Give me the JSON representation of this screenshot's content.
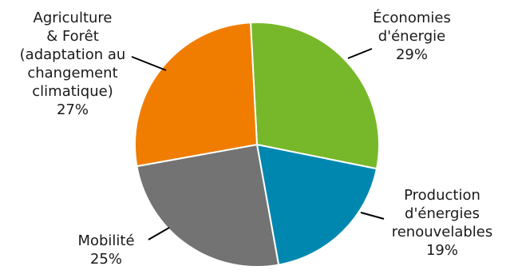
{
  "chart_data": {
    "type": "pie",
    "title": "",
    "start_angle_deg": 0,
    "direction": "clockwise",
    "slices": [
      {
        "label_lines": [
          "Économies",
          "d'énergie"
        ],
        "value": 29,
        "value_text": "29%",
        "color": "#77b82a"
      },
      {
        "label_lines": [
          "Production",
          "d'énergies",
          "renouvelables"
        ],
        "value": 19,
        "value_text": "19%",
        "color": "#0087b0"
      },
      {
        "label_lines": [
          "Mobilité"
        ],
        "value": 25,
        "value_text": "25%",
        "color": "#737373"
      },
      {
        "label_lines": [
          "Agriculture",
          "& Forêt",
          "(adaptation au",
          "changement",
          "climatique)"
        ],
        "value": 27,
        "value_text": "27%",
        "color": "#f07d00"
      }
    ]
  }
}
